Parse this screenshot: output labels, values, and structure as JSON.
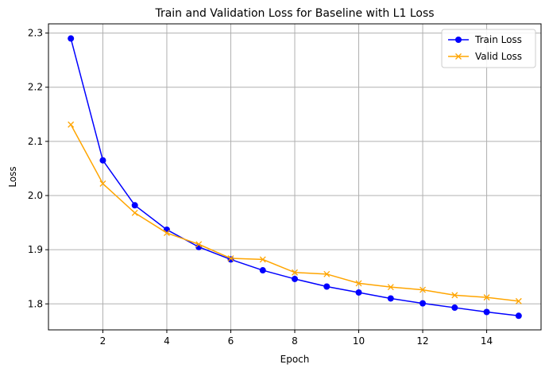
{
  "chart_data": {
    "type": "line",
    "title": "Train and Validation Loss for Baseline with L1 Loss",
    "xlabel": "Epoch",
    "ylabel": "Loss",
    "xlim": [
      0.3,
      15.7
    ],
    "ylim": [
      1.752,
      2.317
    ],
    "xticks": [
      2,
      4,
      6,
      8,
      10,
      12,
      14
    ],
    "yticks": [
      1.8,
      1.9,
      2.0,
      2.1,
      2.2,
      2.3
    ],
    "ytick_labels": [
      "1.8",
      "1.9",
      "2.0",
      "2.1",
      "2.2",
      "2.3"
    ],
    "grid": true,
    "legend_position": "top-right",
    "x": [
      1,
      2,
      3,
      4,
      5,
      6,
      7,
      8,
      9,
      10,
      11,
      12,
      13,
      14,
      15
    ],
    "series": [
      {
        "name": "Train Loss",
        "color": "#0000ff",
        "marker": "circle",
        "values": [
          2.29,
          2.065,
          1.982,
          1.937,
          1.905,
          1.882,
          1.862,
          1.846,
          1.832,
          1.821,
          1.81,
          1.801,
          1.793,
          1.785,
          1.778
        ]
      },
      {
        "name": "Valid Loss",
        "color": "#ffa500",
        "marker": "x",
        "values": [
          2.131,
          2.022,
          1.968,
          1.931,
          1.91,
          1.884,
          1.882,
          1.858,
          1.855,
          1.838,
          1.831,
          1.826,
          1.816,
          1.812,
          1.805
        ]
      }
    ]
  }
}
